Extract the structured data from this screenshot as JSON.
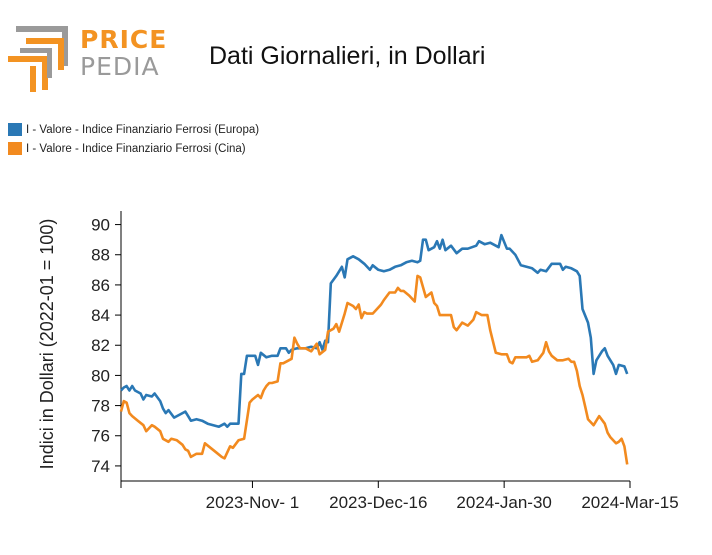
{
  "logo": {
    "word_top": "PRICE",
    "word_bottom": "PEDIA"
  },
  "title": "Dati Giornalieri, in Dollari",
  "colors": {
    "europa": "#2a78b5",
    "cina": "#f28a1f",
    "logo_orange": "#f39322",
    "logo_gray": "#9a9a9a"
  },
  "chart_data": {
    "type": "line",
    "ylabel": "Indici in Dollari (2022-01 = 100)",
    "xlabel": "",
    "ylim": [
      73,
      90.9
    ],
    "xlim": [
      "2023-09-15",
      "2024-03-15"
    ],
    "y_ticks": [
      74,
      76,
      78,
      80,
      82,
      84,
      86,
      88,
      90
    ],
    "x_ticks": [
      {
        "date": "2023-11-01",
        "label": "2023-Nov- 1"
      },
      {
        "date": "2023-12-16",
        "label": "2023-Dec-16"
      },
      {
        "date": "2024-01-30",
        "label": "2024-Jan-30"
      },
      {
        "date": "2024-03-15",
        "label": "2024-Mar-15"
      }
    ],
    "legend_position": "top-left",
    "series": [
      {
        "name": "I - Valore - Indice Finanziario Ferrosi (Europa)",
        "color": "#2a78b5",
        "points": [
          [
            "2023-09-15",
            79.0
          ],
          [
            "2023-09-16",
            79.2
          ],
          [
            "2023-09-17",
            79.3
          ],
          [
            "2023-09-18",
            79.0
          ],
          [
            "2023-09-19",
            79.3
          ],
          [
            "2023-09-20",
            79.0
          ],
          [
            "2023-09-22",
            78.8
          ],
          [
            "2023-09-23",
            78.4
          ],
          [
            "2023-09-24",
            78.7
          ],
          [
            "2023-09-26",
            78.6
          ],
          [
            "2023-09-27",
            78.8
          ],
          [
            "2023-09-29",
            78.3
          ],
          [
            "2023-09-30",
            77.8
          ],
          [
            "2023-10-01",
            77.5
          ],
          [
            "2023-10-02",
            77.7
          ],
          [
            "2023-10-04",
            77.2
          ],
          [
            "2023-10-06",
            77.4
          ],
          [
            "2023-10-08",
            77.6
          ],
          [
            "2023-10-09",
            77.3
          ],
          [
            "2023-10-10",
            77.0
          ],
          [
            "2023-10-12",
            77.1
          ],
          [
            "2023-10-14",
            77.0
          ],
          [
            "2023-10-16",
            76.8
          ],
          [
            "2023-10-18",
            76.7
          ],
          [
            "2023-10-20",
            76.6
          ],
          [
            "2023-10-22",
            76.8
          ],
          [
            "2023-10-23",
            76.6
          ],
          [
            "2023-10-24",
            76.8
          ],
          [
            "2023-10-27",
            76.8
          ],
          [
            "2023-10-28",
            80.1
          ],
          [
            "2023-10-29",
            80.1
          ],
          [
            "2023-10-30",
            81.3
          ],
          [
            "2023-11-01",
            81.3
          ],
          [
            "2023-11-02",
            81.3
          ],
          [
            "2023-11-03",
            80.7
          ],
          [
            "2023-11-04",
            81.5
          ],
          [
            "2023-11-06",
            81.2
          ],
          [
            "2023-11-08",
            81.3
          ],
          [
            "2023-11-10",
            81.3
          ],
          [
            "2023-11-11",
            81.8
          ],
          [
            "2023-11-13",
            81.8
          ],
          [
            "2023-11-14",
            81.5
          ],
          [
            "2023-11-15",
            81.7
          ],
          [
            "2023-11-17",
            81.8
          ],
          [
            "2023-11-20",
            81.8
          ],
          [
            "2023-11-22",
            81.9
          ],
          [
            "2023-11-24",
            81.8
          ],
          [
            "2023-11-25",
            82.2
          ],
          [
            "2023-11-26",
            81.7
          ],
          [
            "2023-11-27",
            82.3
          ],
          [
            "2023-11-28",
            82.2
          ],
          [
            "2023-11-29",
            86.1
          ],
          [
            "2023-12-01",
            86.6
          ],
          [
            "2023-12-03",
            87.2
          ],
          [
            "2023-12-04",
            86.5
          ],
          [
            "2023-12-05",
            87.7
          ],
          [
            "2023-12-07",
            87.9
          ],
          [
            "2023-12-09",
            87.7
          ],
          [
            "2023-12-11",
            87.4
          ],
          [
            "2023-12-13",
            87.0
          ],
          [
            "2023-12-14",
            87.3
          ],
          [
            "2023-12-16",
            87.0
          ],
          [
            "2023-12-18",
            86.9
          ],
          [
            "2023-12-20",
            87.0
          ],
          [
            "2023-12-22",
            87.2
          ],
          [
            "2023-12-24",
            87.3
          ],
          [
            "2023-12-26",
            87.5
          ],
          [
            "2023-12-28",
            87.6
          ],
          [
            "2023-12-30",
            87.5
          ],
          [
            "2023-12-31",
            87.6
          ],
          [
            "2024-01-01",
            89.0
          ],
          [
            "2024-01-02",
            89.0
          ],
          [
            "2024-01-03",
            88.3
          ],
          [
            "2024-01-05",
            88.5
          ],
          [
            "2024-01-06",
            88.9
          ],
          [
            "2024-01-07",
            88.4
          ],
          [
            "2024-01-08",
            89.0
          ],
          [
            "2024-01-09",
            88.3
          ],
          [
            "2024-01-11",
            88.6
          ],
          [
            "2024-01-13",
            88.1
          ],
          [
            "2024-01-15",
            88.4
          ],
          [
            "2024-01-17",
            88.4
          ],
          [
            "2024-01-20",
            88.6
          ],
          [
            "2024-01-21",
            88.9
          ],
          [
            "2024-01-23",
            88.7
          ],
          [
            "2024-01-25",
            88.8
          ],
          [
            "2024-01-27",
            88.6
          ],
          [
            "2024-01-28",
            88.5
          ],
          [
            "2024-01-29",
            89.3
          ],
          [
            "2024-01-31",
            88.4
          ],
          [
            "2024-02-01",
            88.4
          ],
          [
            "2024-02-03",
            88.0
          ],
          [
            "2024-02-05",
            87.3
          ],
          [
            "2024-02-07",
            87.2
          ],
          [
            "2024-02-09",
            87.1
          ],
          [
            "2024-02-11",
            86.8
          ],
          [
            "2024-02-12",
            87.0
          ],
          [
            "2024-02-14",
            86.9
          ],
          [
            "2024-02-16",
            87.4
          ],
          [
            "2024-02-19",
            87.4
          ],
          [
            "2024-02-20",
            87.0
          ],
          [
            "2024-02-21",
            87.2
          ],
          [
            "2024-02-23",
            87.1
          ],
          [
            "2024-02-25",
            86.9
          ],
          [
            "2024-02-26",
            86.6
          ],
          [
            "2024-02-27",
            84.4
          ],
          [
            "2024-02-29",
            83.5
          ],
          [
            "2024-03-01",
            82.5
          ],
          [
            "2024-03-02",
            80.1
          ],
          [
            "2024-03-03",
            81.0
          ],
          [
            "2024-03-05",
            81.6
          ],
          [
            "2024-03-06",
            81.8
          ],
          [
            "2024-03-07",
            81.3
          ],
          [
            "2024-03-09",
            80.7
          ],
          [
            "2024-03-10",
            80.1
          ],
          [
            "2024-03-11",
            80.7
          ],
          [
            "2024-03-13",
            80.6
          ],
          [
            "2024-03-14",
            80.1
          ]
        ]
      },
      {
        "name": "I - Valore - Indice Finanziario Ferrosi (Cina)",
        "color": "#f28a1f",
        "points": [
          [
            "2023-09-15",
            77.6
          ],
          [
            "2023-09-16",
            78.3
          ],
          [
            "2023-09-17",
            78.2
          ],
          [
            "2023-09-18",
            77.5
          ],
          [
            "2023-09-19",
            77.3
          ],
          [
            "2023-09-21",
            77.0
          ],
          [
            "2023-09-23",
            76.7
          ],
          [
            "2023-09-24",
            76.3
          ],
          [
            "2023-09-26",
            76.7
          ],
          [
            "2023-09-27",
            76.6
          ],
          [
            "2023-09-29",
            76.3
          ],
          [
            "2023-09-30",
            75.8
          ],
          [
            "2023-10-02",
            75.6
          ],
          [
            "2023-10-03",
            75.8
          ],
          [
            "2023-10-05",
            75.7
          ],
          [
            "2023-10-07",
            75.4
          ],
          [
            "2023-10-08",
            75.1
          ],
          [
            "2023-10-09",
            75.0
          ],
          [
            "2023-10-10",
            74.6
          ],
          [
            "2023-10-12",
            74.8
          ],
          [
            "2023-10-14",
            74.8
          ],
          [
            "2023-10-15",
            75.5
          ],
          [
            "2023-10-17",
            75.2
          ],
          [
            "2023-10-19",
            74.9
          ],
          [
            "2023-10-21",
            74.6
          ],
          [
            "2023-10-22",
            74.5
          ],
          [
            "2023-10-23",
            74.9
          ],
          [
            "2023-10-24",
            75.3
          ],
          [
            "2023-10-25",
            75.2
          ],
          [
            "2023-10-27",
            75.7
          ],
          [
            "2023-10-29",
            75.8
          ],
          [
            "2023-10-31",
            78.2
          ],
          [
            "2023-11-01",
            78.4
          ],
          [
            "2023-11-03",
            78.7
          ],
          [
            "2023-11-04",
            78.5
          ],
          [
            "2023-11-05",
            79.0
          ],
          [
            "2023-11-06",
            79.3
          ],
          [
            "2023-11-07",
            79.5
          ],
          [
            "2023-11-08",
            79.5
          ],
          [
            "2023-11-10",
            79.6
          ],
          [
            "2023-11-11",
            80.8
          ],
          [
            "2023-11-12",
            80.8
          ],
          [
            "2023-11-14",
            81.0
          ],
          [
            "2023-11-15",
            81.1
          ],
          [
            "2023-11-16",
            82.5
          ],
          [
            "2023-11-17",
            82.1
          ],
          [
            "2023-11-18",
            81.8
          ],
          [
            "2023-11-20",
            81.8
          ],
          [
            "2023-11-22",
            81.6
          ],
          [
            "2023-11-24",
            82.1
          ],
          [
            "2023-11-25",
            81.4
          ],
          [
            "2023-11-27",
            81.7
          ],
          [
            "2023-11-28",
            82.9
          ],
          [
            "2023-11-30",
            83.1
          ],
          [
            "2023-12-01",
            83.4
          ],
          [
            "2023-12-02",
            82.9
          ],
          [
            "2023-12-04",
            84.1
          ],
          [
            "2023-12-05",
            84.8
          ],
          [
            "2023-12-07",
            84.6
          ],
          [
            "2023-12-08",
            84.4
          ],
          [
            "2023-12-09",
            84.7
          ],
          [
            "2023-12-10",
            83.8
          ],
          [
            "2023-12-11",
            84.2
          ],
          [
            "2023-12-12",
            84.1
          ],
          [
            "2023-12-14",
            84.1
          ],
          [
            "2023-12-15",
            84.3
          ],
          [
            "2023-12-17",
            84.7
          ],
          [
            "2023-12-18",
            85.0
          ],
          [
            "2023-12-20",
            85.5
          ],
          [
            "2023-12-22",
            85.5
          ],
          [
            "2023-12-23",
            85.8
          ],
          [
            "2023-12-24",
            85.6
          ],
          [
            "2023-12-25",
            85.6
          ],
          [
            "2023-12-27",
            85.3
          ],
          [
            "2023-12-29",
            84.9
          ],
          [
            "2023-12-30",
            86.6
          ],
          [
            "2023-12-31",
            86.5
          ],
          [
            "2024-01-02",
            85.2
          ],
          [
            "2024-01-04",
            85.5
          ],
          [
            "2024-01-05",
            84.8
          ],
          [
            "2024-01-06",
            84.6
          ],
          [
            "2024-01-07",
            84.0
          ],
          [
            "2024-01-09",
            84.0
          ],
          [
            "2024-01-11",
            84.0
          ],
          [
            "2024-01-12",
            83.2
          ],
          [
            "2024-01-13",
            83.0
          ],
          [
            "2024-01-15",
            83.5
          ],
          [
            "2024-01-17",
            83.3
          ],
          [
            "2024-01-19",
            83.7
          ],
          [
            "2024-01-20",
            84.2
          ],
          [
            "2024-01-22",
            84.0
          ],
          [
            "2024-01-24",
            84.0
          ],
          [
            "2024-01-25",
            83.0
          ],
          [
            "2024-01-27",
            81.5
          ],
          [
            "2024-01-29",
            81.4
          ],
          [
            "2024-01-31",
            81.4
          ],
          [
            "2024-02-01",
            80.9
          ],
          [
            "2024-02-02",
            80.8
          ],
          [
            "2024-02-03",
            81.2
          ],
          [
            "2024-02-05",
            81.2
          ],
          [
            "2024-02-07",
            81.2
          ],
          [
            "2024-02-08",
            81.3
          ],
          [
            "2024-02-09",
            80.9
          ],
          [
            "2024-02-11",
            81.0
          ],
          [
            "2024-02-13",
            81.5
          ],
          [
            "2024-02-14",
            82.2
          ],
          [
            "2024-02-15",
            81.6
          ],
          [
            "2024-02-16",
            81.3
          ],
          [
            "2024-02-18",
            81.0
          ],
          [
            "2024-02-20",
            81.0
          ],
          [
            "2024-02-22",
            81.1
          ],
          [
            "2024-02-23",
            80.9
          ],
          [
            "2024-02-24",
            80.9
          ],
          [
            "2024-02-25",
            80.3
          ],
          [
            "2024-02-26",
            79.3
          ],
          [
            "2024-02-27",
            78.7
          ],
          [
            "2024-02-28",
            77.9
          ],
          [
            "2024-02-29",
            77.1
          ],
          [
            "2024-03-01",
            76.9
          ],
          [
            "2024-03-02",
            76.7
          ],
          [
            "2024-03-04",
            77.3
          ],
          [
            "2024-03-06",
            76.8
          ],
          [
            "2024-03-07",
            76.2
          ],
          [
            "2024-03-08",
            75.9
          ],
          [
            "2024-03-09",
            75.7
          ],
          [
            "2024-03-10",
            75.5
          ],
          [
            "2024-03-11",
            75.6
          ],
          [
            "2024-03-12",
            75.8
          ],
          [
            "2024-03-13",
            75.3
          ],
          [
            "2024-03-14",
            74.1
          ]
        ]
      }
    ]
  }
}
